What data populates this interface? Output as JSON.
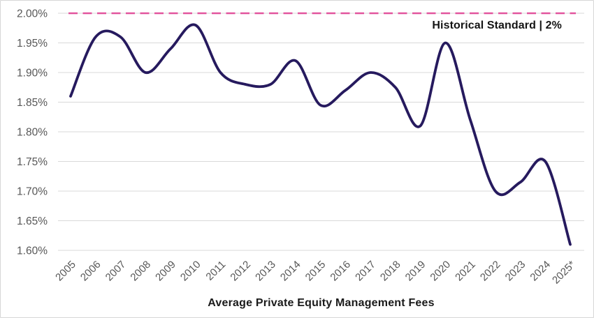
{
  "chart_data": {
    "type": "line",
    "title": "Average Private Equity Management Fees",
    "x_labels": [
      "2005",
      "2006",
      "2007",
      "2008",
      "2009",
      "2010",
      "2011",
      "2012",
      "2013",
      "2014",
      "2015",
      "2016",
      "2017",
      "2018",
      "2019",
      "2020",
      "2021",
      "2022",
      "2023",
      "2024",
      "2025*"
    ],
    "series": [
      {
        "name": "Average Private Equity Management Fee",
        "color": "#261a5e",
        "values": [
          1.86,
          1.96,
          1.96,
          1.9,
          1.94,
          1.98,
          1.9,
          1.88,
          1.88,
          1.92,
          1.845,
          1.87,
          1.9,
          1.875,
          1.81,
          1.95,
          1.82,
          1.7,
          1.715,
          1.75,
          1.61
        ]
      }
    ],
    "reference_line": {
      "label": "Historical Standard | 2%",
      "value": 2.0,
      "color": "#e2559e",
      "style": "dashed"
    },
    "y_axis": {
      "min": 1.6,
      "max": 2.0,
      "step": 0.05,
      "tick_labels": [
        "2.00%",
        "1.95%",
        "1.90%",
        "1.85%",
        "1.80%",
        "1.75%",
        "1.70%",
        "1.65%",
        "1.60%"
      ]
    },
    "x_axis": {
      "label_rotation_deg": -45
    },
    "grid": true,
    "smooth": true,
    "legend_position": "none"
  },
  "colors": {
    "grid": "#d9d9d9",
    "axis_label": "#575757",
    "background": "#ffffff"
  }
}
